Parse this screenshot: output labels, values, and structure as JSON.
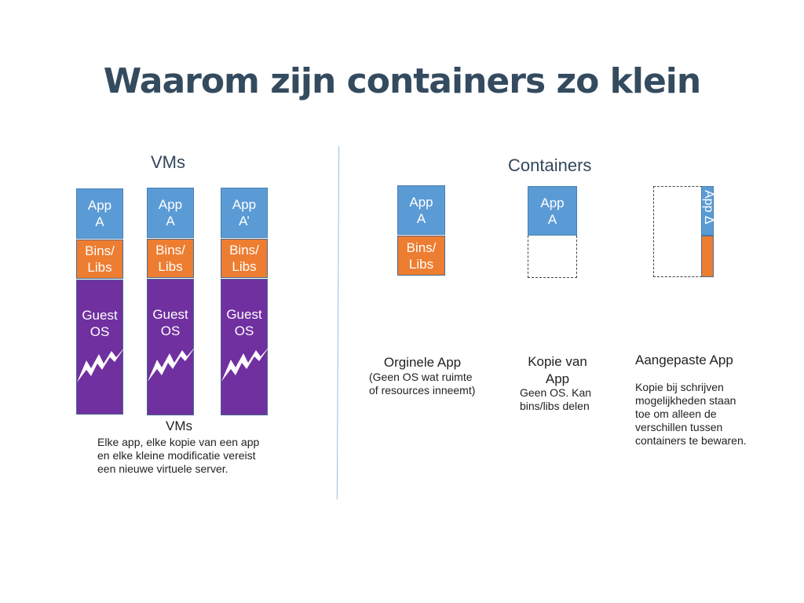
{
  "title": "Waarom zijn containers zo klein",
  "vms": {
    "heading": "VMs",
    "stacks": [
      {
        "app": [
          "App",
          "A"
        ],
        "bins": [
          "Bins/",
          "Libs"
        ],
        "os": [
          "Guest",
          "OS"
        ]
      },
      {
        "app": [
          "App",
          "A"
        ],
        "bins": [
          "Bins/",
          "Libs"
        ],
        "os": [
          "Guest",
          "OS"
        ]
      },
      {
        "app": [
          "App",
          "A’"
        ],
        "bins": [
          "Bins/",
          "Libs"
        ],
        "os": [
          "Guest",
          "OS"
        ]
      }
    ],
    "caption_title": "VMs",
    "caption_lines": [
      "Elke app, elke kopie van een app",
      "en elke kleine modificatie vereist",
      "een nieuwe virtuele server."
    ]
  },
  "containers": {
    "heading": "Containers",
    "original": {
      "app": [
        "App",
        "A"
      ],
      "bins": [
        "Bins/",
        "Libs"
      ],
      "title": "Orginele App",
      "desc": [
        "(Geen OS wat ruimte",
        "of resources inneemt)"
      ]
    },
    "copy": {
      "app": [
        "App",
        "A"
      ],
      "title": [
        "Kopie van",
        "App"
      ],
      "desc": [
        "Geen OS. Kan",
        "bins/libs delen"
      ]
    },
    "modified": {
      "app_label": "App Δ",
      "title": "Aangepaste App",
      "desc": [
        "Kopie bij schrijven",
        "mogelijkheden staan",
        "toe om alleen de",
        "verschillen tussen",
        "containers te bewaren."
      ]
    }
  },
  "colors": {
    "app": "#5b9bd5",
    "bins": "#ed7d31",
    "os": "#7030a0",
    "title": "#344b5f"
  }
}
